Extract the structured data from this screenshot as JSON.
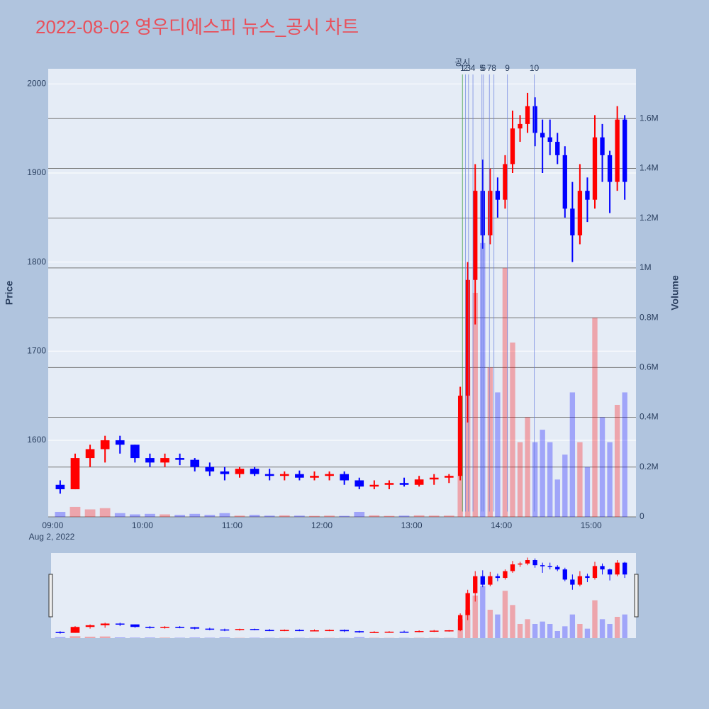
{
  "chart_data": {
    "type": "candlestick",
    "title": "2022-08-02 영우디에스피 뉴스_공시 차트",
    "y_label": "Price",
    "y2_label": "Volume",
    "date_label": "Aug 2, 2022",
    "increasing_color": "#ff0000",
    "decreasing_color": "#0000ff",
    "x": [
      "09:00",
      "09:10",
      "09:20",
      "09:30",
      "09:40",
      "09:50",
      "10:00",
      "10:10",
      "10:20",
      "10:30",
      "10:40",
      "10:50",
      "11:00",
      "11:10",
      "11:20",
      "11:30",
      "11:40",
      "11:50",
      "12:00",
      "12:10",
      "12:20",
      "12:30",
      "12:40",
      "12:50",
      "13:00",
      "13:10",
      "13:20",
      "13:30",
      "13:35",
      "13:40",
      "13:45",
      "13:50",
      "13:55",
      "14:00",
      "14:05",
      "14:10",
      "14:15",
      "14:20",
      "14:25",
      "14:30",
      "14:35",
      "14:40",
      "14:45",
      "14:50",
      "14:55",
      "15:00",
      "15:05",
      "15:10",
      "15:15",
      "15:20"
    ],
    "open": [
      1550,
      1545,
      1580,
      1590,
      1600,
      1595,
      1580,
      1575,
      1580,
      1578,
      1570,
      1565,
      1562,
      1568,
      1562,
      1560,
      1562,
      1558,
      1560,
      1562,
      1555,
      1548,
      1550,
      1552,
      1550,
      1556,
      1558,
      1560,
      1650,
      1780,
      1880,
      1830,
      1880,
      1870,
      1910,
      1950,
      1955,
      1975,
      1945,
      1940,
      1935,
      1920,
      1860,
      1830,
      1880,
      1870,
      1940,
      1920,
      1890,
      1960
    ],
    "high": [
      1555,
      1585,
      1595,
      1605,
      1605,
      1595,
      1585,
      1585,
      1585,
      1580,
      1575,
      1570,
      1570,
      1570,
      1568,
      1565,
      1566,
      1565,
      1565,
      1565,
      1558,
      1555,
      1555,
      1558,
      1560,
      1562,
      1562,
      1660,
      1800,
      1910,
      1915,
      1905,
      1895,
      1920,
      1970,
      1965,
      1990,
      1985,
      1960,
      1960,
      1945,
      1930,
      1890,
      1910,
      1895,
      1965,
      1955,
      1925,
      1975,
      1965
    ],
    "low": [
      1540,
      1545,
      1570,
      1575,
      1585,
      1575,
      1570,
      1570,
      1572,
      1565,
      1560,
      1555,
      1558,
      1560,
      1555,
      1555,
      1555,
      1555,
      1555,
      1550,
      1545,
      1545,
      1545,
      1548,
      1548,
      1550,
      1552,
      1555,
      1620,
      1730,
      1815,
      1820,
      1850,
      1860,
      1900,
      1935,
      1945,
      1930,
      1900,
      1920,
      1910,
      1850,
      1800,
      1820,
      1845,
      1860,
      1890,
      1855,
      1880,
      1870
    ],
    "close": [
      1545,
      1580,
      1590,
      1600,
      1595,
      1580,
      1575,
      1580,
      1578,
      1570,
      1565,
      1562,
      1568,
      1562,
      1560,
      1562,
      1558,
      1560,
      1562,
      1555,
      1548,
      1550,
      1552,
      1550,
      1556,
      1558,
      1560,
      1650,
      1780,
      1880,
      1830,
      1880,
      1870,
      1910,
      1950,
      1955,
      1975,
      1945,
      1940,
      1935,
      1920,
      1860,
      1830,
      1880,
      1870,
      1940,
      1920,
      1890,
      1960,
      1890
    ],
    "volume": [
      20000,
      40000,
      30000,
      35000,
      15000,
      10000,
      12000,
      10000,
      8000,
      12000,
      8000,
      15000,
      5000,
      8000,
      5000,
      6000,
      5000,
      4000,
      5000,
      4000,
      20000,
      6000,
      4000,
      5000,
      6000,
      5000,
      5000,
      400000,
      600000,
      900000,
      1100000,
      600000,
      500000,
      1000000,
      700000,
      300000,
      400000,
      300000,
      350000,
      300000,
      150000,
      250000,
      500000,
      300000,
      200000,
      800000,
      400000,
      300000,
      450000,
      500000
    ],
    "xlim": [
      "08:57",
      "15:30"
    ],
    "xticks": [
      "09:00",
      "10:00",
      "11:00",
      "12:00",
      "13:00",
      "14:00",
      "15:00"
    ],
    "ylim": [
      1514,
      2017
    ],
    "yticks": [
      1600,
      1700,
      1800,
      1900,
      2000
    ],
    "y2lim": [
      0,
      1800000
    ],
    "y2ticks": [
      0,
      {
        "value": 200000,
        "label": "0.2M"
      },
      {
        "value": 400000,
        "label": "0.4M"
      },
      {
        "value": 600000,
        "label": "0.6M"
      },
      {
        "value": 800000,
        "label": "0.8M"
      },
      {
        "value": 1000000,
        "label": "1M"
      },
      {
        "value": 1200000,
        "label": "1.2M"
      },
      {
        "value": 1400000,
        "label": "1.4M"
      },
      {
        "value": 1600000,
        "label": "1.6M"
      }
    ],
    "event_title": "공시",
    "events": [
      {
        "label": "1",
        "x": "13:34"
      },
      {
        "label": "2",
        "x": "13:36"
      },
      {
        "label": "3",
        "x": "13:38"
      },
      {
        "label": "4",
        "x": "13:41"
      },
      {
        "label": "5",
        "x": "13:47"
      },
      {
        "label": "6",
        "x": "13:48"
      },
      {
        "label": "7",
        "x": "13:52"
      },
      {
        "label": "8",
        "x": "13:55"
      },
      {
        "label": "9",
        "x": "14:04"
      },
      {
        "label": "10",
        "x": "14:22"
      }
    ]
  }
}
